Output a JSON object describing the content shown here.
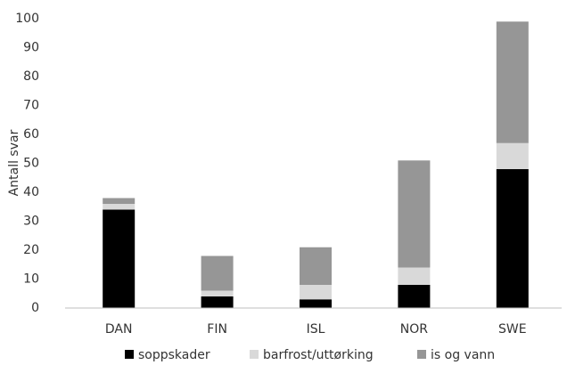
{
  "chart_data": {
    "type": "stacked_bar",
    "y_label": "Antall svar",
    "categories": [
      "DAN",
      "FIN",
      "ISL",
      "NOR",
      "SWE"
    ],
    "series": [
      {
        "name": "soppskader",
        "color": "#000000",
        "values": [
          34,
          4,
          3,
          8,
          48
        ]
      },
      {
        "name": "barfrost/uttørking",
        "color": "#d9d9d9",
        "values": [
          2,
          2,
          5,
          6,
          9
        ]
      },
      {
        "name": "is og vann",
        "color": "#969696",
        "values": [
          2,
          12,
          13,
          37,
          42
        ]
      }
    ],
    "ylim": [
      0,
      100
    ],
    "yticks": [
      0,
      10,
      20,
      30,
      40,
      50,
      60,
      70,
      80,
      90,
      100
    ],
    "grid": false,
    "legend": "bottom"
  }
}
